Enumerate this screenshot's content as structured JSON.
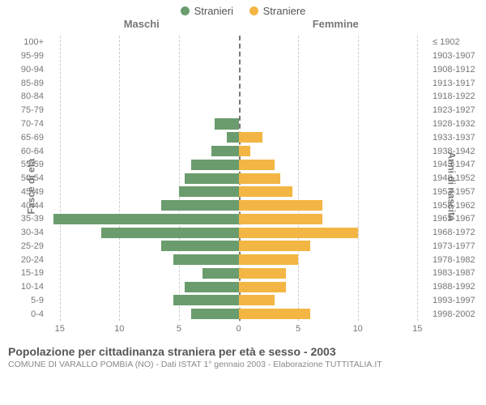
{
  "legend": {
    "male": {
      "label": "Stranieri",
      "color": "#6b9c6e"
    },
    "female": {
      "label": "Straniere",
      "color": "#f3b644"
    }
  },
  "titles": {
    "left": "Maschi",
    "right": "Femmine",
    "yaxis_left": "Fasce di età",
    "yaxis_right": "Anni di nascita"
  },
  "axis": {
    "max": 16,
    "ticks_left": [
      15,
      10,
      5,
      0
    ],
    "ticks_right": [
      0,
      5,
      10,
      15
    ],
    "grid_color": "#cccccc",
    "center_color": "#777777"
  },
  "rows": [
    {
      "age": "100+",
      "birth": "≤ 1902",
      "m": 0,
      "f": 0
    },
    {
      "age": "95-99",
      "birth": "1903-1907",
      "m": 0,
      "f": 0
    },
    {
      "age": "90-94",
      "birth": "1908-1912",
      "m": 0,
      "f": 0
    },
    {
      "age": "85-89",
      "birth": "1913-1917",
      "m": 0,
      "f": 0
    },
    {
      "age": "80-84",
      "birth": "1918-1922",
      "m": 0,
      "f": 0
    },
    {
      "age": "75-79",
      "birth": "1923-1927",
      "m": 0,
      "f": 0
    },
    {
      "age": "70-74",
      "birth": "1928-1932",
      "m": 2.0,
      "f": 0
    },
    {
      "age": "65-69",
      "birth": "1933-1937",
      "m": 1.0,
      "f": 2.0
    },
    {
      "age": "60-64",
      "birth": "1938-1942",
      "m": 2.3,
      "f": 1.0
    },
    {
      "age": "55-59",
      "birth": "1943-1947",
      "m": 4.0,
      "f": 3.0
    },
    {
      "age": "50-54",
      "birth": "1948-1952",
      "m": 4.5,
      "f": 3.5
    },
    {
      "age": "45-49",
      "birth": "1953-1957",
      "m": 5.0,
      "f": 4.5
    },
    {
      "age": "40-44",
      "birth": "1958-1962",
      "m": 6.5,
      "f": 7.0
    },
    {
      "age": "35-39",
      "birth": "1963-1967",
      "m": 15.5,
      "f": 7.0
    },
    {
      "age": "30-34",
      "birth": "1968-1972",
      "m": 11.5,
      "f": 10.0
    },
    {
      "age": "25-29",
      "birth": "1973-1977",
      "m": 6.5,
      "f": 6.0
    },
    {
      "age": "20-24",
      "birth": "1978-1982",
      "m": 5.5,
      "f": 5.0
    },
    {
      "age": "15-19",
      "birth": "1983-1987",
      "m": 3.0,
      "f": 4.0
    },
    {
      "age": "10-14",
      "birth": "1988-1992",
      "m": 4.5,
      "f": 4.0
    },
    {
      "age": "5-9",
      "birth": "1993-1997",
      "m": 5.5,
      "f": 3.0
    },
    {
      "age": "0-4",
      "birth": "1998-2002",
      "m": 4.0,
      "f": 6.0
    }
  ],
  "caption": {
    "main": "Popolazione per cittadinanza straniera per età e sesso - 2003",
    "sub": "COMUNE DI VARALLO POMBIA (NO) - Dati ISTAT 1° gennaio 2003 - Elaborazione TUTTITALIA.IT"
  }
}
